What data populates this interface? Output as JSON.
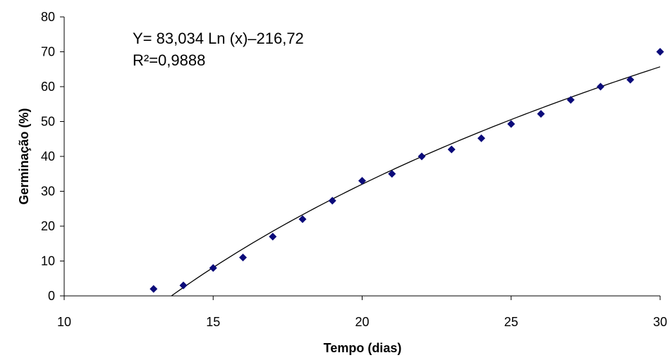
{
  "chart_data": {
    "type": "scatter",
    "xlabel": "Tempo (dias)",
    "ylabel": "Germinação (%)",
    "xlim": [
      10,
      30
    ],
    "ylim": [
      0,
      80
    ],
    "xticks": [
      10,
      15,
      20,
      25,
      30
    ],
    "yticks": [
      0,
      10,
      20,
      30,
      40,
      50,
      60,
      70,
      80
    ],
    "grid": false,
    "legend": "none",
    "colors": {
      "points": "#0b0b7a",
      "trendline": "#000000",
      "axes": "#000000"
    },
    "series": [
      {
        "marker": "diamond",
        "x": [
          13,
          14,
          15,
          16,
          17,
          18,
          19,
          20,
          21,
          22,
          23,
          24,
          25,
          26,
          27,
          28,
          29,
          30
        ],
        "y": [
          2,
          3,
          8,
          11,
          17,
          22,
          27.3,
          33,
          35,
          40,
          42,
          45.2,
          49.3,
          52.2,
          56.2,
          60,
          62,
          70
        ]
      }
    ],
    "trendline": {
      "type": "logarithmic",
      "a": 83.034,
      "b": -216.72
    },
    "annotations": {
      "equation": "Y= 83,034 Ln (x)–216,72",
      "r_squared": "R²=0,9888"
    }
  }
}
